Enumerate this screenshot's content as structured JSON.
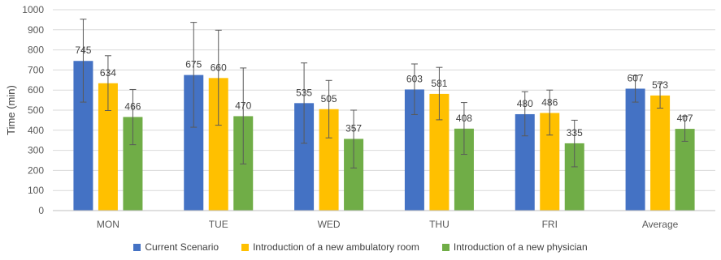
{
  "chart_data": {
    "type": "bar",
    "title": "",
    "xlabel": "",
    "ylabel": "Time (min)",
    "ylim": [
      0,
      1000
    ],
    "yticks": [
      0,
      100,
      200,
      300,
      400,
      500,
      600,
      700,
      800,
      900,
      1000
    ],
    "categories": [
      "MON",
      "TUE",
      "WED",
      "THU",
      "FRI",
      "Average"
    ],
    "grid": true,
    "legend_position": "bottom",
    "series": [
      {
        "name": "Current Scenario",
        "color": "#4472C4",
        "values": [
          745,
          675,
          535,
          603,
          480,
          607
        ],
        "error_low": [
          540,
          415,
          335,
          478,
          372,
          540
        ],
        "error_high": [
          953,
          937,
          735,
          730,
          592,
          672
        ]
      },
      {
        "name": "Introduction of a new ambulatory room",
        "color": "#FFC000",
        "values": [
          634,
          660,
          505,
          581,
          486,
          573
        ],
        "error_low": [
          498,
          425,
          362,
          452,
          376,
          510
        ],
        "error_high": [
          771,
          898,
          648,
          713,
          600,
          633
        ]
      },
      {
        "name": "Introduction of a new physician",
        "color": "#70AD47",
        "values": [
          466,
          470,
          357,
          408,
          335,
          407
        ],
        "error_low": [
          328,
          232,
          212,
          280,
          218,
          345
        ],
        "error_high": [
          603,
          710,
          500,
          538,
          450,
          470
        ]
      }
    ]
  }
}
